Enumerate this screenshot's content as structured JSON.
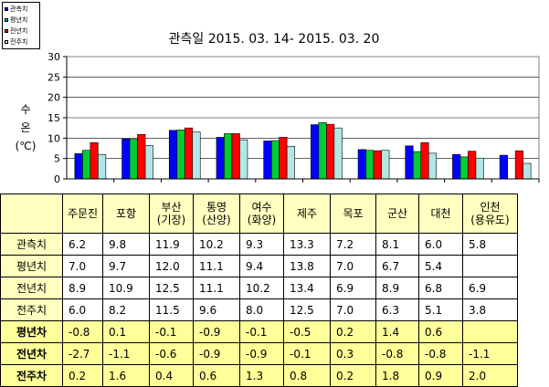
{
  "chart_data": {
    "type": "bar",
    "title": "관측일 2015. 03. 14-  2015. 03. 20",
    "ylabel": [
      "수",
      "온",
      "(℃)"
    ],
    "ylim": [
      0,
      30
    ],
    "yticks": [
      "0",
      "5",
      "10",
      "15",
      "20",
      "25",
      "30"
    ],
    "grid": true,
    "legend_position": "top-left",
    "categories": [
      "주문진",
      "포항",
      "부산(기장)",
      "통영(산양)",
      "여수(화양)",
      "제주",
      "목포",
      "군산",
      "대천",
      "인천(용유도)"
    ],
    "series": [
      {
        "name": "관측치",
        "color": "#0000ff",
        "values": [
          6.2,
          9.8,
          11.9,
          10.2,
          9.3,
          13.3,
          7.2,
          8.1,
          6.0,
          5.8
        ]
      },
      {
        "name": "평년치",
        "color": "#00cc33",
        "values": [
          7.0,
          9.7,
          12.0,
          11.1,
          9.4,
          13.8,
          7.0,
          6.7,
          5.4,
          null
        ]
      },
      {
        "name": "전년치",
        "color": "#ff0000",
        "values": [
          8.9,
          10.9,
          12.5,
          11.1,
          10.2,
          13.4,
          6.9,
          8.9,
          6.8,
          6.9
        ]
      },
      {
        "name": "전주치",
        "color": "#b3e6e6",
        "values": [
          6.0,
          8.2,
          11.5,
          9.6,
          8.0,
          12.5,
          7.0,
          6.3,
          5.1,
          3.8
        ]
      }
    ]
  },
  "table": {
    "header": [
      "",
      "주문진",
      "포항",
      "부산\n(기장)",
      "통영\n(산양)",
      "여수\n(화양)",
      "제주",
      "목포",
      "군산",
      "대천",
      "인천\n(용유도)"
    ],
    "rows": [
      {
        "label": "관측치",
        "cells": [
          "6.2",
          "9.8",
          "11.9",
          "10.2",
          "9.3",
          "13.3",
          "7.2",
          "8.1",
          "6.0",
          "5.8"
        ]
      },
      {
        "label": "평년치",
        "cells": [
          "7.0",
          "9.7",
          "12.0",
          "11.1",
          "9.4",
          "13.8",
          "7.0",
          "6.7",
          "5.4",
          ""
        ]
      },
      {
        "label": "전년치",
        "cells": [
          "8.9",
          "10.9",
          "12.5",
          "11.1",
          "10.2",
          "13.4",
          "6.9",
          "8.9",
          "6.8",
          "6.9"
        ]
      },
      {
        "label": "전주치",
        "cells": [
          "6.0",
          "8.2",
          "11.5",
          "9.6",
          "8.0",
          "12.5",
          "7.0",
          "6.3",
          "5.1",
          "3.8"
        ]
      },
      {
        "label": "평년차",
        "cells": [
          "-0.8",
          "0.1",
          "-0.1",
          "-0.9",
          "-0.1",
          "-0.5",
          "0.2",
          "1.4",
          "0.6",
          ""
        ]
      },
      {
        "label": "전년차",
        "cells": [
          "-2.7",
          "-1.1",
          "-0.6",
          "-0.9",
          "-0.9",
          "-0.1",
          "0.3",
          "-0.8",
          "-0.8",
          "-1.1"
        ]
      },
      {
        "label": "전주차",
        "cells": [
          "0.2",
          "1.6",
          "0.4",
          "0.6",
          "1.3",
          "0.8",
          "0.2",
          "1.8",
          "0.9",
          "2.0"
        ]
      }
    ],
    "colors": {
      "header_bg": "#ffffc0",
      "label_bg": "#ffffc0",
      "diff_bg": "#ffff99",
      "cell_bg": "#ffffff"
    }
  }
}
